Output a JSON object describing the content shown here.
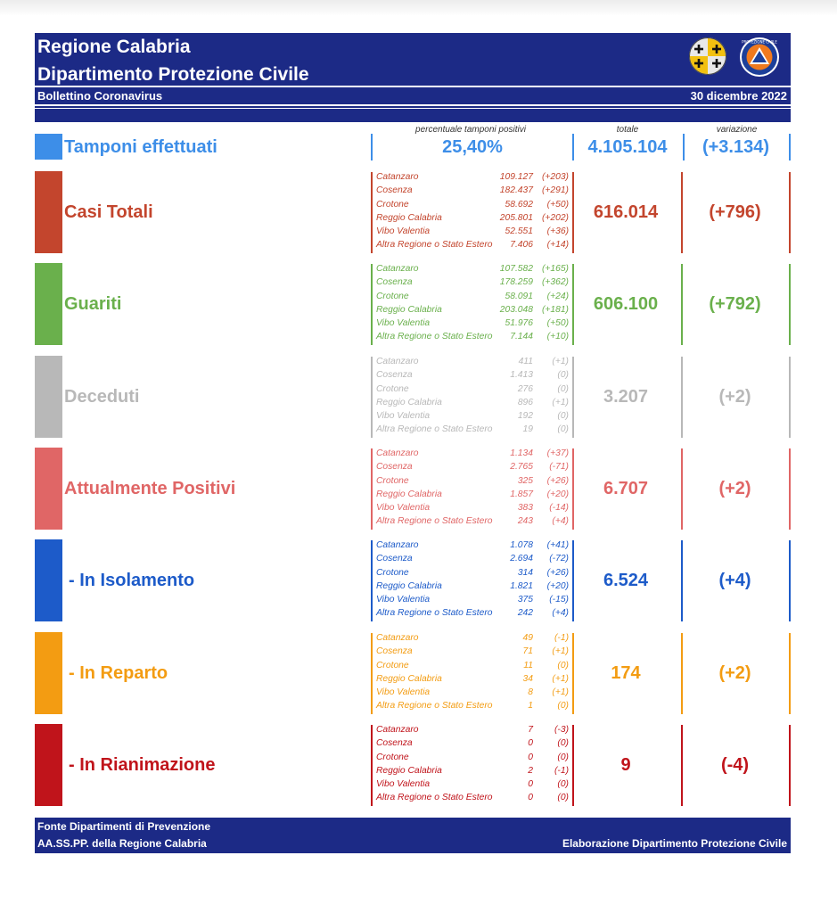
{
  "header": {
    "title_line1": "Regione Calabria",
    "title_line2": "Dipartimento Protezione Civile",
    "subtitle": "Bollettino Coronavirus",
    "date": "30 dicembre 2022",
    "logo1_icon": "regione-calabria-coat-of-arms",
    "logo2_icon": "protezione-civile-calabria-logo",
    "logo2_text": "PROTEZIONE CIVILE",
    "brand_color": "#1c2a86"
  },
  "columns": {
    "percent_label": "percentuale tamponi positivi",
    "total_label": "totale",
    "variation_label": "variazione"
  },
  "tamponi": {
    "label": "Tamponi effettuati",
    "percent": "25,40%",
    "total": "4.105.104",
    "variation": "(+3.134)",
    "color": "#3d8ee8"
  },
  "sections": [
    {
      "label": "Casi Totali",
      "color": "#c3452d",
      "total": "616.014",
      "variation": "(+796)",
      "rows": [
        {
          "name": "Catanzaro",
          "value": "109.127",
          "delta": "(+203)"
        },
        {
          "name": "Cosenza",
          "value": "182.437",
          "delta": "(+291)"
        },
        {
          "name": "Crotone",
          "value": "58.692",
          "delta": "(+50)"
        },
        {
          "name": "Reggio Calabria",
          "value": "205.801",
          "delta": "(+202)"
        },
        {
          "name": "Vibo Valentia",
          "value": "52.551",
          "delta": "(+36)"
        },
        {
          "name": "Altra Regione o Stato Estero",
          "value": "7.406",
          "delta": "(+14)"
        }
      ]
    },
    {
      "label": "Guariti",
      "color": "#6ab04c",
      "total": "606.100",
      "variation": "(+792)",
      "rows": [
        {
          "name": "Catanzaro",
          "value": "107.582",
          "delta": "(+165)"
        },
        {
          "name": "Cosenza",
          "value": "178.259",
          "delta": "(+362)"
        },
        {
          "name": "Crotone",
          "value": "58.091",
          "delta": "(+24)"
        },
        {
          "name": "Reggio Calabria",
          "value": "203.048",
          "delta": "(+181)"
        },
        {
          "name": "Vibo Valentia",
          "value": "51.976",
          "delta": "(+50)"
        },
        {
          "name": "Altra Regione o Stato Estero",
          "value": "7.144",
          "delta": "(+10)"
        }
      ]
    },
    {
      "label": "Deceduti",
      "color": "#b8b8b8",
      "total": "3.207",
      "variation": "(+2)",
      "rows": [
        {
          "name": "Catanzaro",
          "value": "411",
          "delta": "(+1)"
        },
        {
          "name": "Cosenza",
          "value": "1.413",
          "delta": "(0)"
        },
        {
          "name": "Crotone",
          "value": "276",
          "delta": "(0)"
        },
        {
          "name": "Reggio Calabria",
          "value": "896",
          "delta": "(+1)"
        },
        {
          "name": "Vibo Valentia",
          "value": "192",
          "delta": "(0)"
        },
        {
          "name": "Altra Regione o Stato Estero",
          "value": "19",
          "delta": "(0)"
        }
      ]
    },
    {
      "label": "Attualmente Positivi",
      "color": "#e06666",
      "total": "6.707",
      "variation": "(+2)",
      "rows": [
        {
          "name": "Catanzaro",
          "value": "1.134",
          "delta": "(+37)"
        },
        {
          "name": "Cosenza",
          "value": "2.765",
          "delta": "(-71)"
        },
        {
          "name": "Crotone",
          "value": "325",
          "delta": "(+26)"
        },
        {
          "name": "Reggio Calabria",
          "value": "1.857",
          "delta": "(+20)"
        },
        {
          "name": "Vibo Valentia",
          "value": "383",
          "delta": "(-14)"
        },
        {
          "name": "Altra Regione o Stato Estero",
          "value": "243",
          "delta": "(+4)"
        }
      ]
    },
    {
      "label": "- In Isolamento",
      "color": "#1d5bc9",
      "total": "6.524",
      "variation": "(+4)",
      "rows": [
        {
          "name": "Catanzaro",
          "value": "1.078",
          "delta": "(+41)"
        },
        {
          "name": "Cosenza",
          "value": "2.694",
          "delta": "(-72)"
        },
        {
          "name": "Crotone",
          "value": "314",
          "delta": "(+26)"
        },
        {
          "name": "Reggio Calabria",
          "value": "1.821",
          "delta": "(+20)"
        },
        {
          "name": "Vibo Valentia",
          "value": "375",
          "delta": "(-15)"
        },
        {
          "name": "Altra Regione o Stato Estero",
          "value": "242",
          "delta": "(+4)"
        }
      ]
    },
    {
      "label": "- In Reparto",
      "color": "#f39c12",
      "total": "174",
      "variation": "(+2)",
      "rows": [
        {
          "name": "Catanzaro",
          "value": "49",
          "delta": "(-1)"
        },
        {
          "name": "Cosenza",
          "value": "71",
          "delta": "(+1)"
        },
        {
          "name": "Crotone",
          "value": "11",
          "delta": "(0)"
        },
        {
          "name": "Reggio Calabria",
          "value": "34",
          "delta": "(+1)"
        },
        {
          "name": "Vibo Valentia",
          "value": "8",
          "delta": "(+1)"
        },
        {
          "name": "Altra Regione o Stato Estero",
          "value": "1",
          "delta": "(0)"
        }
      ]
    },
    {
      "label": "- In Rianimazione",
      "color": "#c0141b",
      "total": "9",
      "variation": "(-4)",
      "rows": [
        {
          "name": "Catanzaro",
          "value": "7",
          "delta": "(-3)"
        },
        {
          "name": "Cosenza",
          "value": "0",
          "delta": "(0)"
        },
        {
          "name": "Crotone",
          "value": "0",
          "delta": "(0)"
        },
        {
          "name": "Reggio Calabria",
          "value": "2",
          "delta": "(-1)"
        },
        {
          "name": "Vibo Valentia",
          "value": "0",
          "delta": "(0)"
        },
        {
          "name": "Altra Regione o Stato Estero",
          "value": "0",
          "delta": "(0)"
        }
      ]
    }
  ],
  "footer": {
    "source_line1": "Fonte Dipartimenti di Prevenzione",
    "source_line2": "AA.SS.PP.  della Regione Calabria",
    "credit": "Elaborazione Dipartimento Protezione Civile"
  }
}
